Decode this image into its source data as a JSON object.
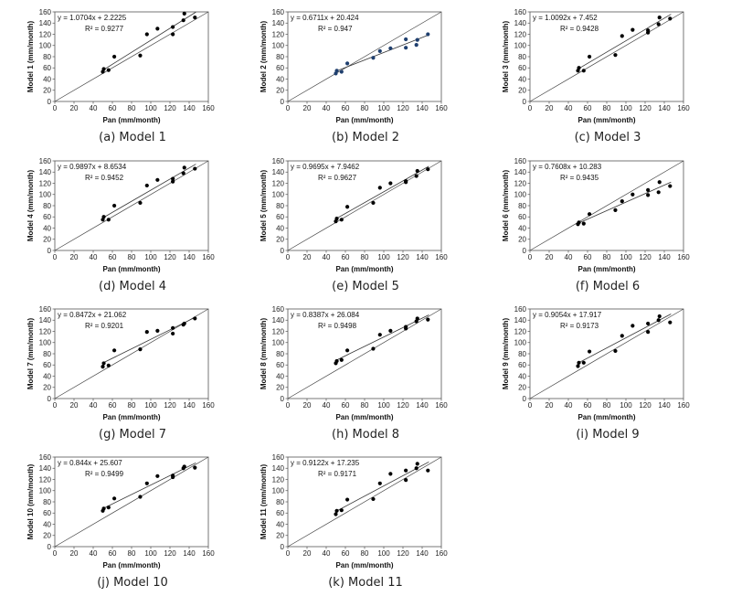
{
  "chart_data": [
    {
      "type": "scatter",
      "caption": "(a) Model 1",
      "xlabel": "Pan (mm/month)",
      "ylabel": "Model 1 (mm/month)",
      "xlim": [
        0,
        160
      ],
      "ylim": [
        0,
        160
      ],
      "xticks": [
        0,
        20,
        40,
        60,
        80,
        100,
        120,
        140,
        160
      ],
      "yticks": [
        0,
        20,
        40,
        60,
        80,
        100,
        120,
        140,
        160
      ],
      "equation": "y = 1.0704x + 2.2225",
      "r2": "R² = 0.9277",
      "slope": 1.0704,
      "intercept": 2.2225,
      "fit_range": [
        50,
        147
      ],
      "points": [
        [
          50,
          53
        ],
        [
          51,
          58
        ],
        [
          56,
          56
        ],
        [
          62,
          80
        ],
        [
          89,
          82
        ],
        [
          96,
          120
        ],
        [
          107,
          130
        ],
        [
          123,
          120
        ],
        [
          123,
          133
        ],
        [
          134,
          145
        ],
        [
          135,
          157
        ],
        [
          146,
          150
        ]
      ]
    },
    {
      "type": "scatter",
      "caption": "(b) Model 2",
      "xlabel": "Pan (mm/month)",
      "ylabel": "Model 2 (mm/month)",
      "xlim": [
        0,
        160
      ],
      "ylim": [
        0,
        160
      ],
      "xticks": [
        0,
        20,
        40,
        60,
        80,
        100,
        120,
        140,
        160
      ],
      "yticks": [
        0,
        20,
        40,
        60,
        80,
        100,
        120,
        140,
        160
      ],
      "equation": "y = 0.6711x + 20.424",
      "r2": "R² = 0.947",
      "slope": 0.6711,
      "intercept": 20.424,
      "fit_range": [
        50,
        147
      ],
      "points": [
        [
          50,
          50
        ],
        [
          51,
          55
        ],
        [
          56,
          53
        ],
        [
          62,
          68
        ],
        [
          89,
          78
        ],
        [
          96,
          90
        ],
        [
          107,
          95
        ],
        [
          123,
          96
        ],
        [
          123,
          111
        ],
        [
          134,
          101
        ],
        [
          135,
          110
        ],
        [
          146,
          120
        ]
      ]
    },
    {
      "type": "scatter",
      "caption": "(c) Model 3",
      "xlabel": "Pan (mm/month)",
      "ylabel": "Model 3 (mm/month)",
      "xlim": [
        0,
        160
      ],
      "ylim": [
        0,
        160
      ],
      "xticks": [
        0,
        20,
        40,
        60,
        80,
        100,
        120,
        140,
        160
      ],
      "yticks": [
        0,
        20,
        40,
        60,
        80,
        100,
        120,
        140,
        160
      ],
      "equation": "y = 1.0092x + 7.452",
      "r2": "R² = 0.9428",
      "slope": 1.0092,
      "intercept": 7.452,
      "fit_range": [
        50,
        147
      ],
      "points": [
        [
          50,
          55
        ],
        [
          51,
          60
        ],
        [
          56,
          55
        ],
        [
          62,
          80
        ],
        [
          89,
          83
        ],
        [
          96,
          117
        ],
        [
          107,
          128
        ],
        [
          123,
          123
        ],
        [
          123,
          127
        ],
        [
          134,
          138
        ],
        [
          135,
          150
        ],
        [
          146,
          148
        ]
      ]
    },
    {
      "type": "scatter",
      "caption": "(d) Model 4",
      "xlabel": "Pan (mm/month)",
      "ylabel": "Model 4 (mm/month)",
      "xlim": [
        0,
        160
      ],
      "ylim": [
        0,
        160
      ],
      "xticks": [
        0,
        20,
        40,
        60,
        80,
        100,
        120,
        140,
        160
      ],
      "yticks": [
        0,
        20,
        40,
        60,
        80,
        100,
        120,
        140,
        160
      ],
      "equation": "y = 0.9897x + 8.6534",
      "r2": "R² = 0.9452",
      "slope": 0.9897,
      "intercept": 8.6534,
      "fit_range": [
        50,
        147
      ],
      "points": [
        [
          50,
          55
        ],
        [
          51,
          60
        ],
        [
          56,
          55
        ],
        [
          62,
          80
        ],
        [
          89,
          85
        ],
        [
          96,
          116
        ],
        [
          107,
          126
        ],
        [
          123,
          123
        ],
        [
          123,
          128
        ],
        [
          134,
          138
        ],
        [
          135,
          148
        ],
        [
          146,
          146
        ]
      ]
    },
    {
      "type": "scatter",
      "caption": "(e) Model 5",
      "xlabel": "Pan (mm/month)",
      "ylabel": "Model 5 (mm/month)",
      "xlim": [
        0,
        160
      ],
      "ylim": [
        0,
        160
      ],
      "xticks": [
        0,
        20,
        40,
        60,
        80,
        100,
        120,
        140,
        160
      ],
      "yticks": [
        0,
        20,
        40,
        60,
        80,
        100,
        120,
        140,
        160
      ],
      "equation": "y = 0.9695x + 7.9462",
      "r2": "R² = 0.9627",
      "slope": 0.9695,
      "intercept": 7.9462,
      "fit_range": [
        50,
        147
      ],
      "points": [
        [
          50,
          52
        ],
        [
          51,
          57
        ],
        [
          56,
          55
        ],
        [
          62,
          78
        ],
        [
          89,
          85
        ],
        [
          96,
          112
        ],
        [
          107,
          120
        ],
        [
          123,
          124
        ],
        [
          123,
          122
        ],
        [
          134,
          133
        ],
        [
          135,
          142
        ],
        [
          146,
          145
        ]
      ]
    },
    {
      "type": "scatter",
      "caption": "(f) Model 6",
      "xlabel": "Pan (mm/month)",
      "ylabel": "Model 6 (mm/month)",
      "xlim": [
        0,
        160
      ],
      "ylim": [
        0,
        160
      ],
      "xticks": [
        0,
        20,
        40,
        60,
        80,
        100,
        120,
        140,
        160
      ],
      "yticks": [
        0,
        20,
        40,
        60,
        80,
        100,
        120,
        140,
        160
      ],
      "equation": "y = 0.7608x + 10.283",
      "r2": "R² = 0.9435",
      "slope": 0.7608,
      "intercept": 10.283,
      "fit_range": [
        50,
        147
      ],
      "points": [
        [
          50,
          47
        ],
        [
          51,
          50
        ],
        [
          56,
          48
        ],
        [
          62,
          65
        ],
        [
          89,
          72
        ],
        [
          96,
          88
        ],
        [
          107,
          100
        ],
        [
          123,
          99
        ],
        [
          123,
          108
        ],
        [
          134,
          104
        ],
        [
          135,
          122
        ],
        [
          146,
          115
        ]
      ]
    },
    {
      "type": "scatter",
      "caption": "(g) Model 7",
      "xlabel": "Pan (mm/month)",
      "ylabel": "Model 7 (mm/month)",
      "xlim": [
        0,
        160
      ],
      "ylim": [
        0,
        160
      ],
      "xticks": [
        0,
        20,
        40,
        60,
        80,
        100,
        120,
        140,
        160
      ],
      "yticks": [
        0,
        20,
        40,
        60,
        80,
        100,
        120,
        140,
        160
      ],
      "equation": "y = 0.8472x + 21.062",
      "r2": "R² = 0.9201",
      "slope": 0.8472,
      "intercept": 21.062,
      "fit_range": [
        50,
        147
      ],
      "points": [
        [
          50,
          57
        ],
        [
          51,
          63
        ],
        [
          56,
          59
        ],
        [
          62,
          86
        ],
        [
          89,
          88
        ],
        [
          96,
          119
        ],
        [
          107,
          121
        ],
        [
          123,
          116
        ],
        [
          123,
          126
        ],
        [
          134,
          132
        ],
        [
          135,
          134
        ],
        [
          146,
          143
        ]
      ]
    },
    {
      "type": "scatter",
      "caption": "(h) Model 8",
      "xlabel": "Pan (mm/month)",
      "ylabel": "Model 8 (mm/month)",
      "xlim": [
        0,
        160
      ],
      "ylim": [
        0,
        160
      ],
      "xticks": [
        0,
        20,
        40,
        60,
        80,
        100,
        120,
        140,
        160
      ],
      "yticks": [
        0,
        20,
        40,
        60,
        80,
        100,
        120,
        140,
        160
      ],
      "equation": "y = 0.8387x + 26.084",
      "r2": "R² = 0.9498",
      "slope": 0.8387,
      "intercept": 26.084,
      "fit_range": [
        50,
        147
      ],
      "points": [
        [
          50,
          63
        ],
        [
          51,
          67
        ],
        [
          56,
          69
        ],
        [
          62,
          86
        ],
        [
          89,
          89
        ],
        [
          96,
          114
        ],
        [
          107,
          121
        ],
        [
          123,
          125
        ],
        [
          123,
          128
        ],
        [
          134,
          138
        ],
        [
          135,
          143
        ],
        [
          146,
          141
        ]
      ]
    },
    {
      "type": "scatter",
      "caption": "(i) Model 9",
      "xlabel": "Pan (mm/month)",
      "ylabel": "Model 9 (mm/month)",
      "xlim": [
        0,
        160
      ],
      "ylim": [
        0,
        160
      ],
      "xticks": [
        0,
        20,
        40,
        60,
        80,
        100,
        120,
        140,
        160
      ],
      "yticks": [
        0,
        20,
        40,
        60,
        80,
        100,
        120,
        140,
        160
      ],
      "equation": "y = 0.9054x + 17.917",
      "r2": "R² = 0.9173",
      "slope": 0.9054,
      "intercept": 17.917,
      "fit_range": [
        50,
        147
      ],
      "points": [
        [
          50,
          58
        ],
        [
          51,
          64
        ],
        [
          56,
          64
        ],
        [
          62,
          84
        ],
        [
          89,
          85
        ],
        [
          96,
          112
        ],
        [
          107,
          130
        ],
        [
          123,
          119
        ],
        [
          123,
          134
        ],
        [
          134,
          140
        ],
        [
          135,
          147
        ],
        [
          146,
          136
        ]
      ]
    },
    {
      "type": "scatter",
      "caption": "(j) Model 10",
      "xlabel": "Pan (mm/month)",
      "ylabel": "Model 10 (mm/month)",
      "xlim": [
        0,
        160
      ],
      "ylim": [
        0,
        160
      ],
      "xticks": [
        0,
        20,
        40,
        60,
        80,
        100,
        120,
        140,
        160
      ],
      "yticks": [
        0,
        20,
        40,
        60,
        80,
        100,
        120,
        140,
        160
      ],
      "equation": "y = 0.844x + 25.607",
      "r2": "R² = 0.9499",
      "slope": 0.844,
      "intercept": 25.607,
      "fit_range": [
        50,
        147
      ],
      "points": [
        [
          50,
          64
        ],
        [
          51,
          68
        ],
        [
          56,
          70
        ],
        [
          62,
          86
        ],
        [
          89,
          89
        ],
        [
          96,
          113
        ],
        [
          107,
          126
        ],
        [
          123,
          124
        ],
        [
          123,
          127
        ],
        [
          134,
          140
        ],
        [
          135,
          143
        ],
        [
          146,
          141
        ]
      ]
    },
    {
      "type": "scatter",
      "caption": "(k) Model 11",
      "xlabel": "Pan (mm/month)",
      "ylabel": "Model 11 (mm/month)",
      "xlim": [
        0,
        160
      ],
      "ylim": [
        0,
        160
      ],
      "xticks": [
        0,
        20,
        40,
        60,
        80,
        100,
        120,
        140,
        160
      ],
      "yticks": [
        0,
        20,
        40,
        60,
        80,
        100,
        120,
        140,
        160
      ],
      "equation": "y = 0.9122x + 17.235",
      "r2": "R² = 0.9171",
      "slope": 0.9122,
      "intercept": 17.235,
      "fit_range": [
        50,
        147
      ],
      "points": [
        [
          50,
          58
        ],
        [
          51,
          64
        ],
        [
          56,
          65
        ],
        [
          62,
          84
        ],
        [
          89,
          85
        ],
        [
          96,
          113
        ],
        [
          107,
          130
        ],
        [
          123,
          119
        ],
        [
          123,
          136
        ],
        [
          134,
          140
        ],
        [
          135,
          148
        ],
        [
          146,
          136
        ]
      ]
    }
  ]
}
